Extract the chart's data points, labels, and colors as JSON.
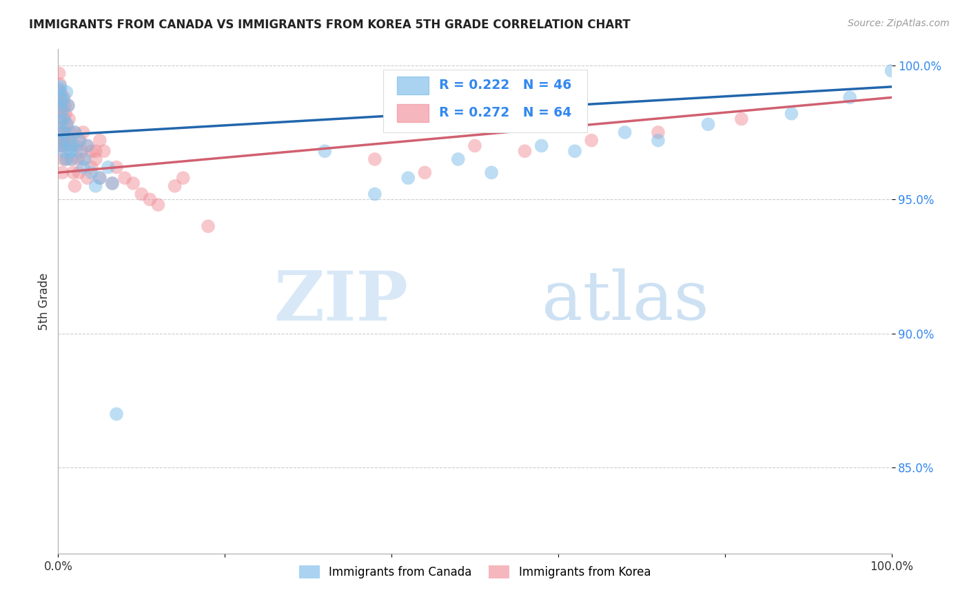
{
  "title": "IMMIGRANTS FROM CANADA VS IMMIGRANTS FROM KOREA 5TH GRADE CORRELATION CHART",
  "source": "Source: ZipAtlas.com",
  "ylabel": "5th Grade",
  "watermark_zip": "ZIP",
  "watermark_atlas": "atlas",
  "xmin": 0.0,
  "xmax": 1.0,
  "ymin": 0.818,
  "ymax": 1.006,
  "yticks": [
    0.85,
    0.9,
    0.95,
    1.0
  ],
  "ytick_labels": [
    "85.0%",
    "90.0%",
    "95.0%",
    "100.0%"
  ],
  "xticks": [
    0.0,
    0.2,
    0.4,
    0.6,
    0.8,
    1.0
  ],
  "xtick_labels": [
    "0.0%",
    "",
    "",
    "",
    "",
    "100.0%"
  ],
  "legend_line1": "R = 0.222   N = 46",
  "legend_line2": "R = 0.272   N = 64",
  "legend_label_canada": "Immigrants from Canada",
  "legend_label_korea": "Immigrants from Korea",
  "color_canada": "#7bbce8",
  "color_korea": "#f0909a",
  "color_trendline_canada": "#2166ac",
  "color_trendline_korea": "#d06070",
  "background_color": "#ffffff",
  "grid_color": "#cccccc",
  "canada_x": [
    0.001,
    0.002,
    0.003,
    0.003,
    0.004,
    0.004,
    0.005,
    0.005,
    0.006,
    0.006,
    0.007,
    0.007,
    0.008,
    0.009,
    0.01,
    0.011,
    0.012,
    0.013,
    0.015,
    0.016,
    0.018,
    0.02,
    0.022,
    0.025,
    0.03,
    0.032,
    0.035,
    0.04,
    0.045,
    0.05,
    0.06,
    0.065,
    0.07,
    0.32,
    0.38,
    0.42,
    0.48,
    0.52,
    0.58,
    0.62,
    0.68,
    0.72,
    0.78,
    0.88,
    0.95,
    1.0
  ],
  "canada_y": [
    0.991,
    0.985,
    0.992,
    0.979,
    0.988,
    0.975,
    0.983,
    0.97,
    0.987,
    0.972,
    0.98,
    0.968,
    0.975,
    0.965,
    0.99,
    0.978,
    0.985,
    0.972,
    0.968,
    0.965,
    0.97,
    0.975,
    0.968,
    0.972,
    0.962,
    0.965,
    0.97,
    0.96,
    0.955,
    0.958,
    0.962,
    0.956,
    0.87,
    0.968,
    0.952,
    0.958,
    0.965,
    0.96,
    0.97,
    0.968,
    0.975,
    0.972,
    0.978,
    0.982,
    0.988,
    0.998
  ],
  "korea_x": [
    0.001,
    0.001,
    0.002,
    0.002,
    0.003,
    0.003,
    0.003,
    0.004,
    0.004,
    0.005,
    0.005,
    0.005,
    0.006,
    0.006,
    0.007,
    0.007,
    0.008,
    0.008,
    0.009,
    0.009,
    0.01,
    0.01,
    0.011,
    0.012,
    0.013,
    0.014,
    0.015,
    0.016,
    0.018,
    0.02,
    0.022,
    0.024,
    0.026,
    0.028,
    0.03,
    0.035,
    0.04,
    0.045,
    0.05,
    0.055,
    0.065,
    0.07,
    0.08,
    0.09,
    0.1,
    0.11,
    0.12,
    0.14,
    0.15,
    0.18,
    0.02,
    0.025,
    0.03,
    0.035,
    0.04,
    0.045,
    0.05,
    0.38,
    0.44,
    0.5,
    0.56,
    0.64,
    0.72,
    0.82
  ],
  "korea_y": [
    0.997,
    0.988,
    0.993,
    0.983,
    0.99,
    0.978,
    0.97,
    0.985,
    0.972,
    0.98,
    0.97,
    0.96,
    0.975,
    0.965,
    0.988,
    0.975,
    0.985,
    0.973,
    0.982,
    0.97,
    0.978,
    0.965,
    0.972,
    0.985,
    0.98,
    0.975,
    0.97,
    0.965,
    0.96,
    0.975,
    0.97,
    0.965,
    0.972,
    0.968,
    0.975,
    0.97,
    0.968,
    0.965,
    0.972,
    0.968,
    0.956,
    0.962,
    0.958,
    0.956,
    0.952,
    0.95,
    0.948,
    0.955,
    0.958,
    0.94,
    0.955,
    0.96,
    0.965,
    0.958,
    0.962,
    0.968,
    0.958,
    0.965,
    0.96,
    0.97,
    0.968,
    0.972,
    0.975,
    0.98
  ],
  "trendline_canada_x0": 0.0,
  "trendline_canada_x1": 1.0,
  "trendline_canada_y0": 0.974,
  "trendline_canada_y1": 0.992,
  "trendline_korea_x0": 0.0,
  "trendline_korea_x1": 1.0,
  "trendline_korea_y0": 0.96,
  "trendline_korea_y1": 0.988
}
